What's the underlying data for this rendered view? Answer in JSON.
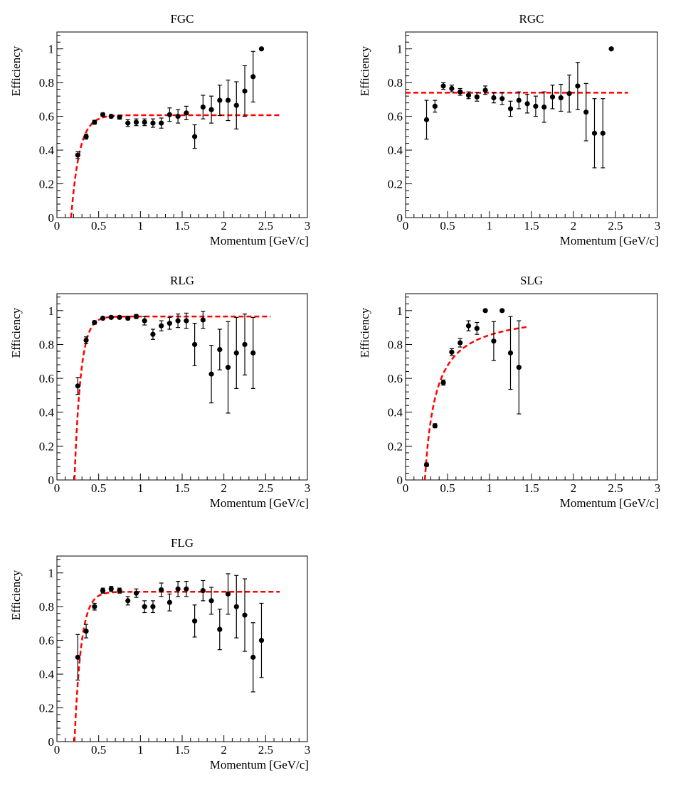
{
  "figure": {
    "background": "#ffffff"
  },
  "style": {
    "marker_color": "#000000",
    "fit_color": "#ff0000"
  },
  "chart_data": [
    {
      "type": "scatter",
      "title": "FGC",
      "xlabel": "Momentum [GeV/c]",
      "ylabel": "Efficiency",
      "xlim": [
        0,
        3
      ],
      "ylim": [
        0,
        1.1
      ],
      "xticks": [
        0,
        0.5,
        1,
        1.5,
        2,
        2.5,
        3
      ],
      "xtick_labels": [
        "0",
        "0.5",
        "1",
        "1.5",
        "2",
        "2.5",
        "3"
      ],
      "yticks": [
        0,
        0.2,
        0.4,
        0.6,
        0.8,
        1
      ],
      "ytick_labels": [
        "0",
        "0.2",
        "0.4",
        "0.6",
        "0.8",
        "1"
      ],
      "points": {
        "x": [
          0.25,
          0.35,
          0.45,
          0.55,
          0.65,
          0.75,
          0.85,
          0.95,
          1.05,
          1.15,
          1.25,
          1.35,
          1.45,
          1.55,
          1.65,
          1.75,
          1.85,
          1.95,
          2.05,
          2.15,
          2.25,
          2.35,
          2.45
        ],
        "y": [
          0.37,
          0.48,
          0.565,
          0.61,
          0.6,
          0.595,
          0.56,
          0.565,
          0.565,
          0.56,
          0.56,
          0.61,
          0.6,
          0.62,
          0.48,
          0.655,
          0.64,
          0.695,
          0.695,
          0.665,
          0.75,
          0.835,
          1.0
        ],
        "err": [
          0.02,
          0.015,
          0.012,
          0.01,
          0.01,
          0.012,
          0.02,
          0.02,
          0.02,
          0.025,
          0.03,
          0.04,
          0.04,
          0.04,
          0.07,
          0.07,
          0.08,
          0.09,
          0.12,
          0.14,
          0.15,
          0.15,
          0.0
        ]
      },
      "fit": {
        "model": "exp_saturation",
        "plateau": 0.607,
        "x0": 0.17,
        "scale": 0.1,
        "x_range": [
          0.17,
          2.67
        ]
      }
    },
    {
      "type": "scatter",
      "title": "RGC",
      "xlabel": "Momentum [GeV/c]",
      "ylabel": "Efficiency",
      "xlim": [
        0,
        3
      ],
      "ylim": [
        0,
        1.1
      ],
      "xticks": [
        0,
        0.5,
        1,
        1.5,
        2,
        2.5,
        3
      ],
      "xtick_labels": [
        "0",
        "0.5",
        "1",
        "1.5",
        "2",
        "2.5",
        "3"
      ],
      "yticks": [
        0,
        0.2,
        0.4,
        0.6,
        0.8,
        1
      ],
      "ytick_labels": [
        "0",
        "0.2",
        "0.4",
        "0.6",
        "0.8",
        "1"
      ],
      "points": {
        "x": [
          0.25,
          0.35,
          0.45,
          0.55,
          0.65,
          0.75,
          0.85,
          0.95,
          1.05,
          1.15,
          1.25,
          1.35,
          1.45,
          1.55,
          1.65,
          1.75,
          1.85,
          1.95,
          2.05,
          2.15,
          2.25,
          2.35,
          2.45
        ],
        "y": [
          0.58,
          0.66,
          0.78,
          0.765,
          0.745,
          0.725,
          0.715,
          0.755,
          0.71,
          0.705,
          0.645,
          0.695,
          0.675,
          0.66,
          0.655,
          0.715,
          0.71,
          0.735,
          0.78,
          0.625,
          0.5,
          0.5,
          1.0
        ],
        "err": [
          0.115,
          0.035,
          0.02,
          0.02,
          0.02,
          0.02,
          0.025,
          0.025,
          0.03,
          0.035,
          0.045,
          0.05,
          0.055,
          0.06,
          0.09,
          0.07,
          0.08,
          0.11,
          0.14,
          0.17,
          0.205,
          0.205,
          0.0
        ]
      },
      "fit": {
        "model": "constant",
        "value": 0.74,
        "x_range": [
          0.0,
          2.65
        ]
      }
    },
    {
      "type": "scatter",
      "title": "RLG",
      "xlabel": "Momentum [GeV/c]",
      "ylabel": "Efficiency",
      "xlim": [
        0,
        3
      ],
      "ylim": [
        0,
        1.1
      ],
      "xticks": [
        0,
        0.5,
        1,
        1.5,
        2,
        2.5,
        3
      ],
      "xtick_labels": [
        "0",
        "0.5",
        "1",
        "1.5",
        "2",
        "2.5",
        "3"
      ],
      "yticks": [
        0,
        0.2,
        0.4,
        0.6,
        0.8,
        1
      ],
      "ytick_labels": [
        "0",
        "0.2",
        "0.4",
        "0.6",
        "0.8",
        "1"
      ],
      "points": {
        "x": [
          0.25,
          0.35,
          0.45,
          0.55,
          0.65,
          0.75,
          0.85,
          0.95,
          1.05,
          1.15,
          1.25,
          1.35,
          1.45,
          1.55,
          1.65,
          1.75,
          1.85,
          1.95,
          2.05,
          2.15,
          2.25,
          2.35
        ],
        "y": [
          0.555,
          0.825,
          0.93,
          0.955,
          0.96,
          0.96,
          0.955,
          0.965,
          0.94,
          0.86,
          0.91,
          0.925,
          0.94,
          0.94,
          0.8,
          0.945,
          0.625,
          0.77,
          0.665,
          0.75,
          0.8,
          0.75
        ],
        "err": [
          0.05,
          0.02,
          0.01,
          0.008,
          0.008,
          0.008,
          0.01,
          0.012,
          0.025,
          0.03,
          0.03,
          0.035,
          0.04,
          0.045,
          0.125,
          0.05,
          0.17,
          0.12,
          0.27,
          0.21,
          0.18,
          0.21
        ]
      },
      "fit": {
        "model": "exp_saturation",
        "plateau": 0.965,
        "x0": 0.21,
        "scale": 0.075,
        "x_range": [
          0.21,
          2.56
        ]
      }
    },
    {
      "type": "scatter",
      "title": "SLG",
      "xlabel": "Momentum [GeV/c]",
      "ylabel": "Efficiency",
      "xlim": [
        0,
        3
      ],
      "ylim": [
        0,
        1.1
      ],
      "xticks": [
        0,
        0.5,
        1,
        1.5,
        2,
        2.5,
        3
      ],
      "xtick_labels": [
        "0",
        "0.5",
        "1",
        "1.5",
        "2",
        "2.5",
        "3"
      ],
      "yticks": [
        0,
        0.2,
        0.4,
        0.6,
        0.8,
        1
      ],
      "ytick_labels": [
        "0",
        "0.2",
        "0.4",
        "0.6",
        "0.8",
        "1"
      ],
      "points": {
        "x": [
          0.25,
          0.35,
          0.45,
          0.55,
          0.65,
          0.75,
          0.85,
          0.95,
          1.05,
          1.15,
          1.25,
          1.35
        ],
        "y": [
          0.09,
          0.32,
          0.575,
          0.755,
          0.81,
          0.91,
          0.895,
          1.0,
          0.82,
          1.0,
          0.75,
          0.665
        ],
        "err": [
          0.01,
          0.012,
          0.015,
          0.02,
          0.025,
          0.03,
          0.035,
          0.0,
          0.115,
          0.0,
          0.215,
          0.275
        ]
      },
      "fit": {
        "model": "hyperbolic",
        "plateau": 1.0,
        "x0": 0.23,
        "scale": 0.13,
        "x_range": [
          0.23,
          1.45
        ]
      }
    },
    {
      "type": "scatter",
      "title": "FLG",
      "xlabel": "Momentum [GeV/c]",
      "ylabel": "Efficiency",
      "xlim": [
        0,
        3
      ],
      "ylim": [
        0,
        1.1
      ],
      "xticks": [
        0,
        0.5,
        1,
        1.5,
        2,
        2.5,
        3
      ],
      "xtick_labels": [
        "0",
        "0.5",
        "1",
        "1.5",
        "2",
        "2.5",
        "3"
      ],
      "yticks": [
        0,
        0.2,
        0.4,
        0.6,
        0.8,
        1
      ],
      "ytick_labels": [
        "0",
        "0.2",
        "0.4",
        "0.6",
        "0.8",
        "1"
      ],
      "points": {
        "x": [
          0.25,
          0.35,
          0.45,
          0.55,
          0.65,
          0.75,
          0.85,
          0.95,
          1.05,
          1.15,
          1.25,
          1.35,
          1.45,
          1.55,
          1.65,
          1.75,
          1.85,
          1.95,
          2.05,
          2.15,
          2.25,
          2.35,
          2.45
        ],
        "y": [
          0.5,
          0.655,
          0.8,
          0.895,
          0.905,
          0.895,
          0.835,
          0.88,
          0.8,
          0.8,
          0.9,
          0.825,
          0.905,
          0.905,
          0.715,
          0.895,
          0.835,
          0.665,
          0.875,
          0.8,
          0.75,
          0.5,
          0.6
        ],
        "err": [
          0.135,
          0.04,
          0.02,
          0.015,
          0.015,
          0.015,
          0.025,
          0.025,
          0.035,
          0.035,
          0.04,
          0.05,
          0.045,
          0.045,
          0.095,
          0.06,
          0.08,
          0.12,
          0.12,
          0.185,
          0.215,
          0.205,
          0.22
        ]
      },
      "fit": {
        "model": "exp_saturation",
        "plateau": 0.888,
        "x0": 0.21,
        "scale": 0.08,
        "x_range": [
          0.21,
          2.67
        ]
      }
    }
  ]
}
